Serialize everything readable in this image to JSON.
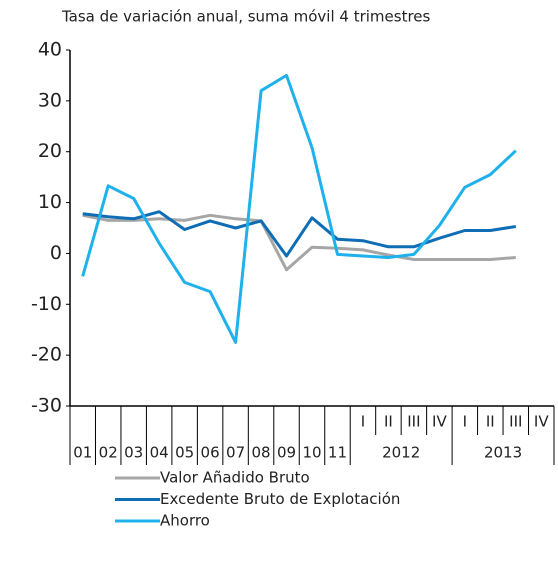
{
  "chart_data": {
    "type": "line",
    "title": "Tasa de variación anual, suma móvil 4 trimestres",
    "category_groups": [
      {
        "categories": [
          "01",
          "02",
          "03",
          "04",
          "05",
          "06",
          "07",
          "08",
          "09",
          "10",
          "11"
        ]
      },
      {
        "label": "2012",
        "categories": [
          "I",
          "II",
          "III",
          "IV"
        ]
      },
      {
        "label": "2013",
        "categories": [
          "I",
          "II",
          "III",
          "IV"
        ]
      }
    ],
    "series": [
      {
        "name": "Valor Añadido Bruto",
        "color": "#a6a6a6",
        "values": [
          7.5,
          6.5,
          6.5,
          6.8,
          6.5,
          7.5,
          6.8,
          6.4,
          -3.2,
          1.2,
          1,
          0.7,
          -0.3,
          -1.2,
          -1.2,
          -1.2,
          -1.2,
          -0.8,
          null
        ]
      },
      {
        "name": "Excedente Bruto de Explotación",
        "color": "#0e6db5",
        "values": [
          7.8,
          7.2,
          6.8,
          8.2,
          4.7,
          6.4,
          5,
          6.4,
          -0.5,
          7,
          2.8,
          2.5,
          1.3,
          1.3,
          3,
          4.5,
          4.5,
          5.3,
          null
        ]
      },
      {
        "name": "Ahorro",
        "color": "#1fb1ec",
        "values": [
          -4.5,
          13.3,
          10.8,
          2,
          -5.7,
          -7.5,
          -17.5,
          32,
          35,
          20.8,
          -0.2,
          -0.5,
          -0.8,
          -0.2,
          5.5,
          13,
          15.5,
          20.2,
          null
        ]
      }
    ],
    "ylim": [
      -30,
      40
    ],
    "yticks": [
      -30,
      -20,
      -10,
      0,
      10,
      20,
      30,
      40
    ]
  }
}
